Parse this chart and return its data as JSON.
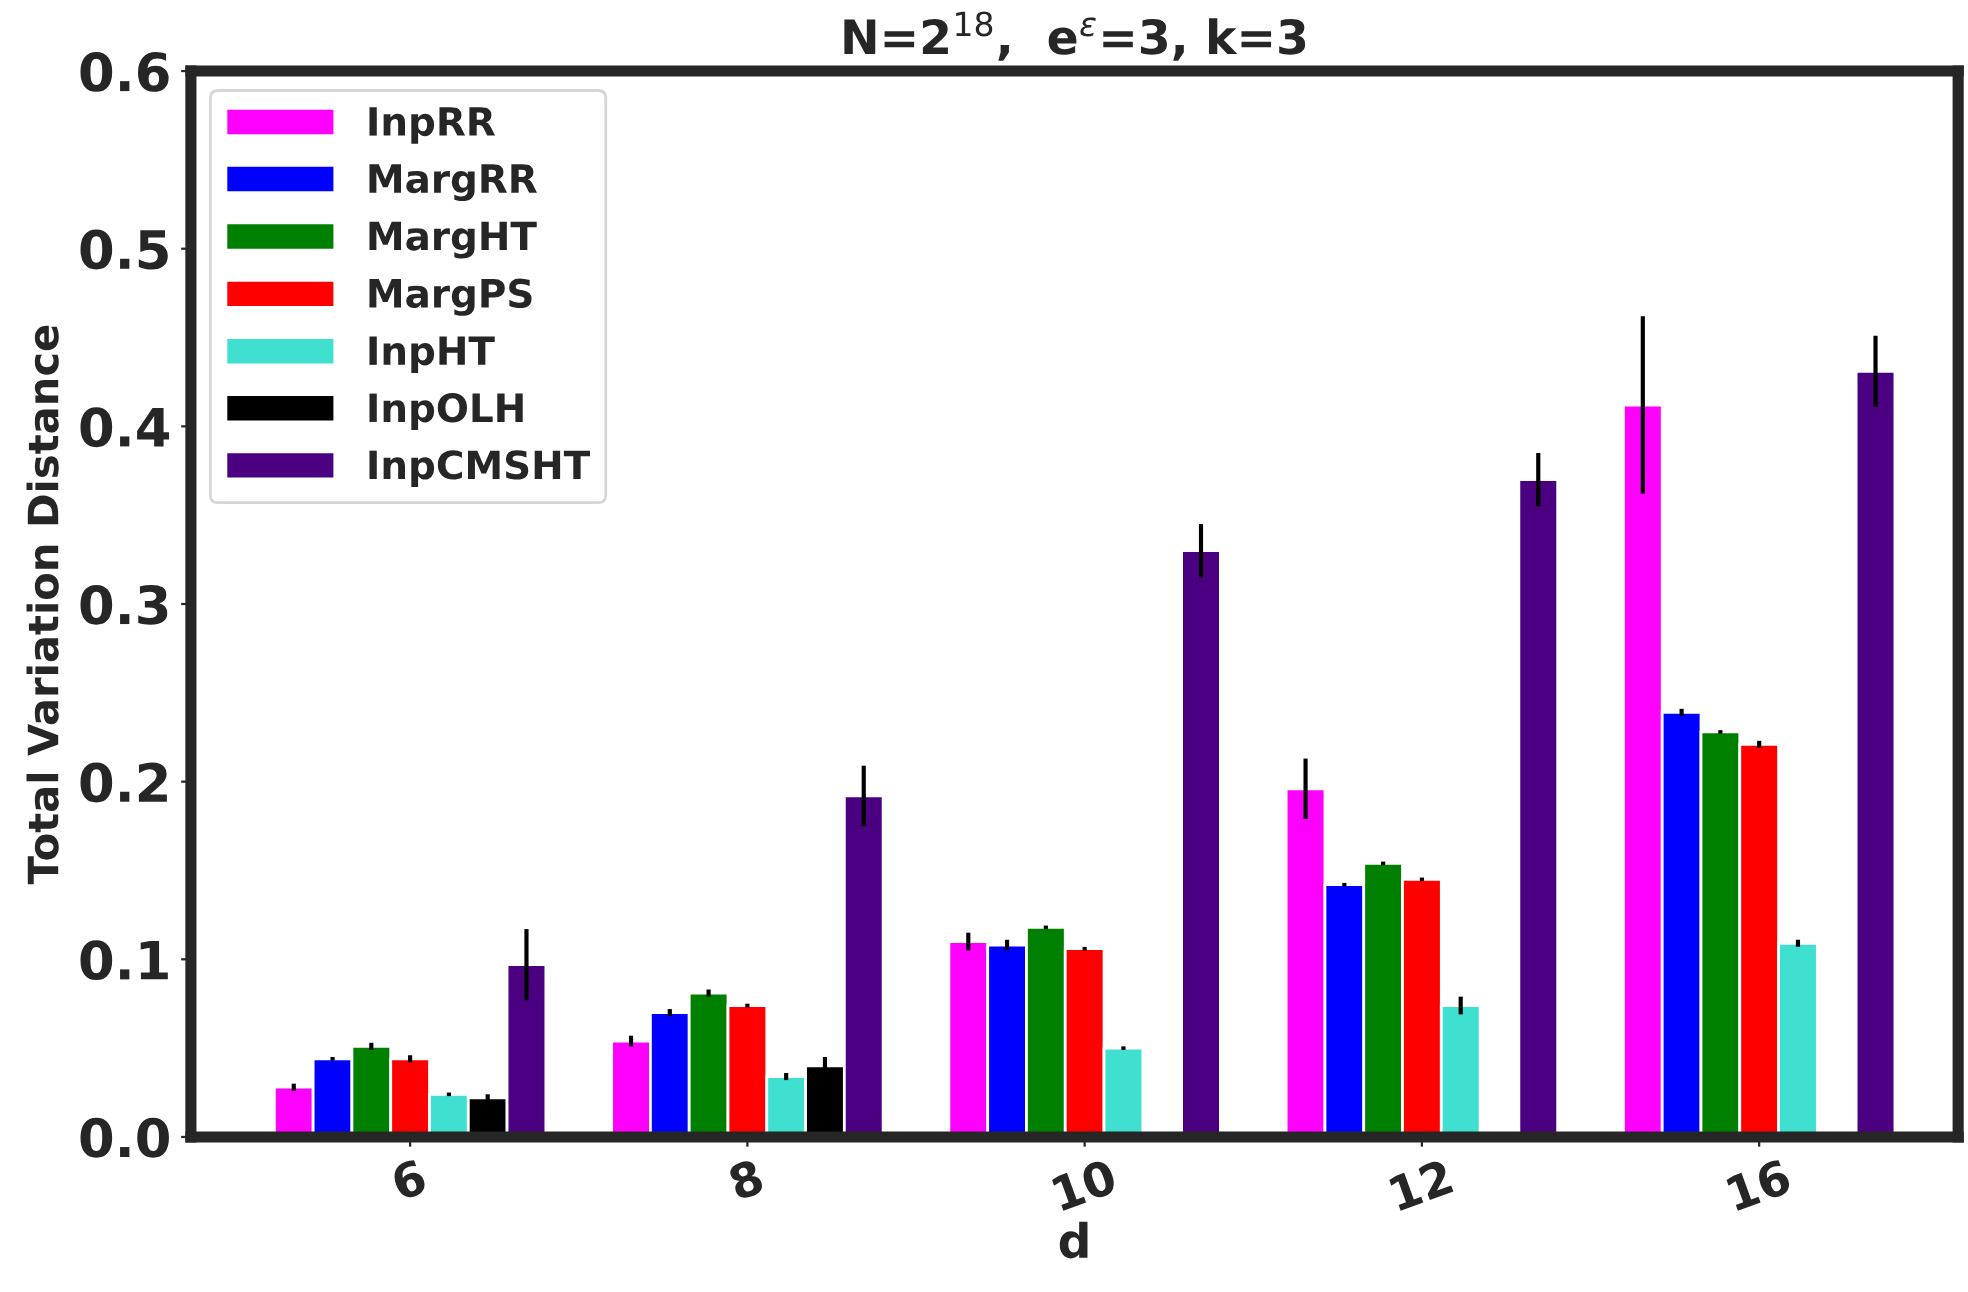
{
  "chart_data": {
    "type": "bar",
    "title": "N=2$^{18}$,  e$^{ε}$=3, k=3",
    "xlabel": "d",
    "ylabel": "Total Variation Distance",
    "categories": [
      "6",
      "8",
      "10",
      "12",
      "16"
    ],
    "series": [
      {
        "name": "InpRR",
        "color": "#ff00ff",
        "values": [
          0.028,
          0.054,
          0.11,
          0.196,
          0.412
        ],
        "errors": [
          0.002,
          0.003,
          0.005,
          0.017,
          0.05
        ]
      },
      {
        "name": "MargRR",
        "color": "#0000ff",
        "values": [
          0.044,
          0.07,
          0.108,
          0.142,
          0.239
        ],
        "errors": [
          0.001,
          0.002,
          0.003,
          0.001,
          0.002
        ]
      },
      {
        "name": "MargHT",
        "color": "#008000",
        "values": [
          0.051,
          0.081,
          0.118,
          0.154,
          0.228
        ],
        "errors": [
          0.002,
          0.002,
          0.001,
          0.001,
          0.001
        ]
      },
      {
        "name": "MargPS",
        "color": "#ff0000",
        "values": [
          0.044,
          0.074,
          0.106,
          0.145,
          0.221
        ],
        "errors": [
          0.002,
          0.001,
          0.001,
          0.001,
          0.002
        ]
      },
      {
        "name": "InpHT",
        "color": "#40e0d0",
        "values": [
          0.024,
          0.034,
          0.05,
          0.074,
          0.109
        ],
        "errors": [
          0.001,
          0.002,
          0.001,
          0.005,
          0.002
        ]
      },
      {
        "name": "InpOLH",
        "color": "#000000",
        "values": [
          0.022,
          0.04,
          null,
          null,
          null
        ],
        "errors": [
          0.002,
          0.005,
          null,
          null,
          null
        ]
      },
      {
        "name": "InpCMSHT",
        "color": "#4b0082",
        "values": [
          0.097,
          0.192,
          0.33,
          0.37,
          0.431
        ],
        "errors": [
          0.02,
          0.017,
          0.015,
          0.015,
          0.02
        ]
      }
    ],
    "ylim": [
      0,
      0.6
    ],
    "yticks": [
      {
        "value": 0,
        "label": "0.0"
      },
      0.1,
      0.2,
      0.3,
      0.4,
      0.5,
      0.6
    ],
    "legend": "top left",
    "grid": false
  }
}
